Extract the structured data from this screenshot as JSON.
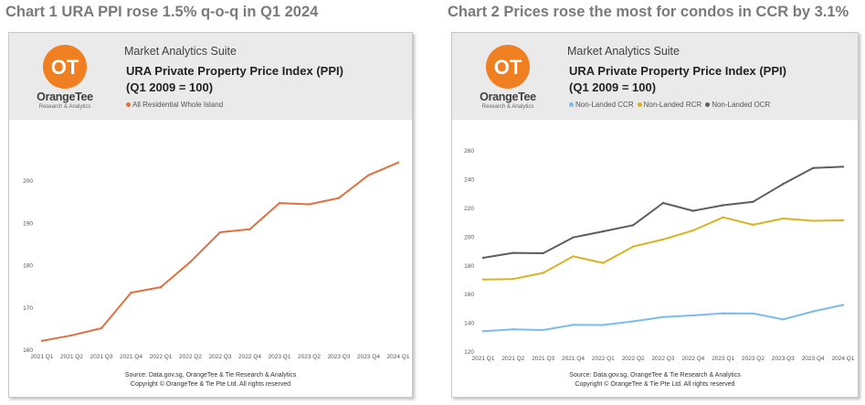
{
  "headings": {
    "chart1": "Chart 1 URA PPI rose 1.5% q-o-q in Q1 2024",
    "chart2": "Chart 2 Prices rose the most for condos in CCR by 3.1%"
  },
  "brand": {
    "name": "OrangeTee",
    "sub": "Research & Analytics",
    "suite": "Market Analytics Suite",
    "logo_color": "#f07f21"
  },
  "source": {
    "line1": "Source: Data.gov.sg, OrangeTee & Tie Research & Analytics",
    "line2": "Copyright © OrangeTee & Tie Pte Ltd. All rights reserved"
  },
  "chart_data": [
    {
      "type": "line",
      "title_line1": "URA Private Property Price Index (PPI)",
      "title_line2": "(Q1 2009 = 100)",
      "categories": [
        "2021 Q1",
        "2021 Q2",
        "2021 Q3",
        "2021 Q4",
        "2022 Q1",
        "2022 Q2",
        "2022 Q3",
        "2022 Q4",
        "2023 Q1",
        "2023 Q2",
        "2023 Q3",
        "2023 Q4",
        "2024 Q1"
      ],
      "series": [
        {
          "name": "All Residential Whole Island",
          "color": "#e07040",
          "values": [
            162.2,
            163.5,
            165.2,
            173.6,
            174.9,
            180.9,
            187.9,
            188.6,
            194.8,
            194.5,
            196.0,
            201.4,
            204.4
          ]
        }
      ],
      "ylim": [
        160,
        205
      ],
      "yticks": [
        160,
        170,
        180,
        190,
        200
      ],
      "grid": false,
      "legend": "top-left"
    },
    {
      "type": "line",
      "title_line1": "URA Private Property Price Index (PPI)",
      "title_line2": "(Q1 2009 = 100)",
      "categories": [
        "2021 Q1",
        "2021 Q2",
        "2021 Q3",
        "2021 Q4",
        "2022 Q1",
        "2022 Q2",
        "2022 Q3",
        "2022 Q4",
        "2023 Q1",
        "2023 Q2",
        "2023 Q3",
        "2023 Q4",
        "2024 Q1"
      ],
      "series": [
        {
          "name": "Non-Landed CCR",
          "color": "#7cbcec",
          "values": [
            134.5,
            135.8,
            135.3,
            138.9,
            138.8,
            141.3,
            144.4,
            145.5,
            146.9,
            146.8,
            142.7,
            148.3,
            152.8
          ]
        },
        {
          "name": "Non-Landed RCR",
          "color": "#d8b423",
          "values": [
            170.5,
            170.8,
            175.1,
            186.6,
            182.0,
            193.4,
            198.4,
            204.6,
            213.8,
            208.6,
            213.0,
            211.4,
            211.7
          ]
        },
        {
          "name": "Non-Landed OCR",
          "color": "#5e5e5e",
          "values": [
            185.6,
            189.0,
            188.8,
            199.8,
            204.0,
            208.3,
            223.8,
            218.3,
            222.2,
            224.6,
            237.0,
            248.1,
            249.0
          ]
        }
      ],
      "ylim": [
        120,
        262
      ],
      "yticks": [
        120,
        140,
        160,
        180,
        200,
        220,
        240,
        260
      ],
      "grid": false,
      "legend": "top-left"
    }
  ]
}
